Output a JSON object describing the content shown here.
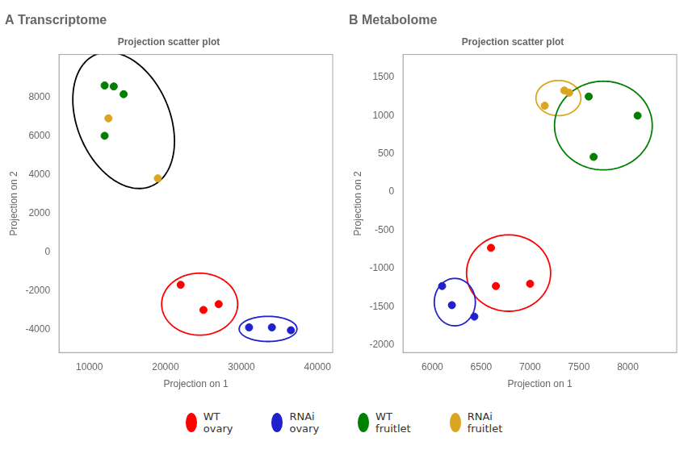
{
  "chart_data": [
    {
      "type": "scatter",
      "title": "A Transcriptome",
      "subtitle": "Projection scatter plot",
      "xlabel": "Projection on 1",
      "ylabel": "Projection on 2",
      "xlim": [
        6000,
        42000
      ],
      "ylim": [
        -5200,
        10200
      ],
      "xticks": [
        10000,
        20000,
        30000,
        40000
      ],
      "yticks": [
        -4000,
        -2000,
        0,
        2000,
        4000,
        6000,
        8000
      ],
      "grid": false,
      "series": [
        {
          "name": "WT\novary",
          "color": "red",
          "values": [
            [
              22000,
              -1700
            ],
            [
              25000,
              -3000
            ],
            [
              27000,
              -2700
            ]
          ]
        },
        {
          "name": "RNAi\novary",
          "color": "#2020cc",
          "values": [
            [
              31000,
              -3900
            ],
            [
              34000,
              -3900
            ],
            [
              36500,
              -4050
            ]
          ]
        },
        {
          "name": "WT\nfruitlet",
          "color": "green",
          "values": [
            [
              12000,
              8600
            ],
            [
              13200,
              8550
            ],
            [
              14500,
              8150
            ],
            [
              12000,
              6000
            ]
          ]
        },
        {
          "name": "RNAi\nfruitlet",
          "color": "#DAA520",
          "values": [
            [
              12500,
              6900
            ],
            [
              19000,
              3800
            ]
          ]
        }
      ],
      "ellipses": [
        {
          "cx": 14500,
          "cy": 6800,
          "rx": 6800,
          "ry": 3300,
          "angle": -12,
          "color": "black"
        },
        {
          "cx": 24500,
          "cy": -2700,
          "rx": 5000,
          "ry": 1600,
          "angle": 0,
          "color": "red"
        },
        {
          "cx": 33500,
          "cy": -3980,
          "rx": 3800,
          "ry": 650,
          "angle": 0,
          "color": "#2020cc"
        }
      ]
    },
    {
      "type": "scatter",
      "title": "B Metabolome",
      "subtitle": "Projection scatter plot",
      "xlabel": "Projection on 1",
      "ylabel": "Projection on 2",
      "xlim": [
        5700,
        8500
      ],
      "ylim": [
        -2100,
        1800
      ],
      "xticks": [
        6000,
        6500,
        7000,
        7500,
        8000
      ],
      "yticks": [
        -2000,
        -1500,
        -1000,
        -500,
        0,
        500,
        1000,
        1500
      ],
      "grid": false,
      "series": [
        {
          "name": "WT\novary",
          "color": "red",
          "values": [
            [
              6600,
              -730
            ],
            [
              6650,
              -1230
            ],
            [
              7000,
              -1200
            ]
          ]
        },
        {
          "name": "RNAi\novary",
          "color": "#2020cc",
          "values": [
            [
              6100,
              -1230
            ],
            [
              6200,
              -1480
            ],
            [
              6430,
              -1630
            ]
          ]
        },
        {
          "name": "WT\nfruitlet",
          "color": "green",
          "values": [
            [
              7600,
              1250
            ],
            [
              8100,
              1000
            ],
            [
              7650,
              460
            ]
          ]
        },
        {
          "name": "RNAi\nfruitlet",
          "color": "#DAA520",
          "values": [
            [
              7150,
              1130
            ],
            [
              7350,
              1330
            ],
            [
              7400,
              1300
            ]
          ]
        }
      ],
      "ellipses": [
        {
          "cx": 7290,
          "cy": 1230,
          "rx": 230,
          "ry": 230,
          "angle": 0,
          "color": "#DAA520"
        },
        {
          "cx": 7750,
          "cy": 870,
          "rx": 500,
          "ry": 580,
          "angle": 0,
          "color": "green"
        },
        {
          "cx": 6780,
          "cy": -1060,
          "rx": 430,
          "ry": 500,
          "angle": 0,
          "color": "red"
        },
        {
          "cx": 6230,
          "cy": -1440,
          "rx": 210,
          "ry": 310,
          "angle": 0,
          "color": "#2020cc"
        }
      ]
    }
  ]
}
